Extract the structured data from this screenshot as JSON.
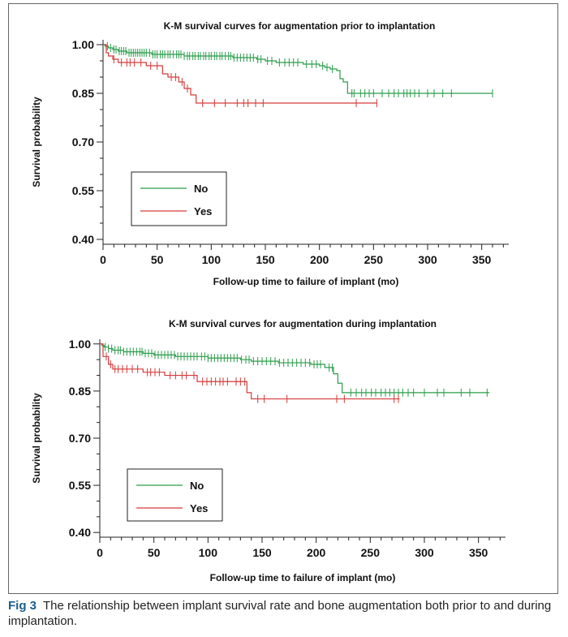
{
  "caption": {
    "label": "Fig 3",
    "text": "The relationship between implant survival rate and bone augmentation both prior to and during implantation."
  },
  "chart_data": [
    {
      "type": "line",
      "title": "K-M survival curves for augmentation prior to implantation",
      "xlabel": "Follow-up time to failure of implant (mo)",
      "ylabel": "Survival probability",
      "xlim": [
        0,
        375
      ],
      "ylim": [
        0.385,
        1.015
      ],
      "x_ticks": [
        0,
        50,
        100,
        150,
        200,
        250,
        300,
        350
      ],
      "y_ticks": [
        1.0,
        0.85,
        0.7,
        0.55,
        0.4
      ],
      "y_tick_labels": [
        "1.00",
        "0.85",
        "0.70",
        "0.55",
        "0.40"
      ],
      "legend": {
        "position": "lower-left",
        "entries": [
          "No",
          "Yes"
        ]
      },
      "series": [
        {
          "name": "No",
          "color": "#2a9d4a",
          "steps": [
            [
              0,
              1.0
            ],
            [
              2,
              0.995
            ],
            [
              5,
              0.99
            ],
            [
              9,
              0.985
            ],
            [
              14,
              0.98
            ],
            [
              22,
              0.975
            ],
            [
              45,
              0.97
            ],
            [
              75,
              0.965
            ],
            [
              120,
              0.96
            ],
            [
              142,
              0.955
            ],
            [
              150,
              0.95
            ],
            [
              160,
              0.945
            ],
            [
              185,
              0.94
            ],
            [
              200,
              0.935
            ],
            [
              205,
              0.93
            ],
            [
              210,
              0.925
            ],
            [
              216,
              0.92
            ],
            [
              219,
              0.895
            ],
            [
              222,
              0.885
            ],
            [
              226,
              0.85
            ],
            [
              360,
              0.85
            ]
          ],
          "censored": [
            4,
            7,
            10,
            12,
            15,
            17,
            19,
            21,
            24,
            26,
            28,
            30,
            32,
            34,
            36,
            38,
            40,
            43,
            46,
            48,
            50,
            53,
            55,
            57,
            60,
            62,
            65,
            68,
            70,
            72,
            75,
            78,
            80,
            83,
            85,
            88,
            90,
            93,
            95,
            98,
            100,
            103,
            105,
            108,
            110,
            113,
            116,
            118,
            121,
            124,
            127,
            130,
            133,
            136,
            139,
            143,
            146,
            152,
            156,
            163,
            168,
            172,
            176,
            180,
            188,
            193,
            197,
            203,
            207,
            212,
            230,
            232,
            238,
            242,
            246,
            250,
            258,
            264,
            269,
            273,
            278,
            281,
            284,
            288,
            292,
            300,
            306,
            314,
            322,
            360
          ]
        },
        {
          "name": "Yes",
          "color": "#d63a3a",
          "steps": [
            [
              0,
              1.0
            ],
            [
              3,
              0.975
            ],
            [
              5,
              0.965
            ],
            [
              9,
              0.955
            ],
            [
              14,
              0.945
            ],
            [
              40,
              0.935
            ],
            [
              55,
              0.91
            ],
            [
              60,
              0.9
            ],
            [
              70,
              0.885
            ],
            [
              75,
              0.865
            ],
            [
              81,
              0.845
            ],
            [
              86,
              0.82
            ],
            [
              253,
              0.82
            ]
          ],
          "censored": [
            10,
            17,
            22,
            25,
            29,
            35,
            44,
            50,
            63,
            67,
            73,
            78,
            92,
            103,
            113,
            124,
            130,
            134,
            141,
            148,
            234,
            253
          ]
        }
      ]
    },
    {
      "type": "line",
      "title": "K-M survival curves for augmentation during implantation",
      "xlabel": "Follow-up time to failure of implant (mo)",
      "ylabel": "Survival probability",
      "xlim": [
        0,
        375
      ],
      "ylim": [
        0.385,
        1.015
      ],
      "x_ticks": [
        0,
        50,
        100,
        150,
        200,
        250,
        300,
        350
      ],
      "y_ticks": [
        1.0,
        0.85,
        0.7,
        0.55,
        0.4
      ],
      "y_tick_labels": [
        "1.00",
        "0.85",
        "0.70",
        "0.55",
        "0.40"
      ],
      "legend": {
        "position": "lower-left",
        "entries": [
          "No",
          "Yes"
        ]
      },
      "series": [
        {
          "name": "No",
          "color": "#2a9d4a",
          "steps": [
            [
              0,
              1.0
            ],
            [
              2,
              0.995
            ],
            [
              4,
              0.99
            ],
            [
              8,
              0.985
            ],
            [
              12,
              0.98
            ],
            [
              22,
              0.975
            ],
            [
              40,
              0.97
            ],
            [
              50,
              0.965
            ],
            [
              70,
              0.96
            ],
            [
              100,
              0.955
            ],
            [
              130,
              0.95
            ],
            [
              140,
              0.945
            ],
            [
              165,
              0.94
            ],
            [
              195,
              0.935
            ],
            [
              208,
              0.925
            ],
            [
              216,
              0.905
            ],
            [
              220,
              0.875
            ],
            [
              224,
              0.845
            ],
            [
              360,
              0.845
            ]
          ],
          "censored": [
            5,
            8,
            11,
            14,
            17,
            19,
            22,
            25,
            28,
            31,
            34,
            37,
            39,
            42,
            45,
            48,
            51,
            54,
            57,
            60,
            63,
            66,
            69,
            72,
            75,
            78,
            81,
            84,
            87,
            90,
            94,
            97,
            100,
            103,
            106,
            109,
            112,
            115,
            118,
            121,
            124,
            127,
            131,
            135,
            138,
            142,
            146,
            150,
            154,
            158,
            162,
            166,
            170,
            174,
            178,
            182,
            186,
            190,
            194,
            198,
            201,
            204,
            212,
            215,
            232,
            237,
            242,
            246,
            251,
            255,
            260,
            264,
            268,
            272,
            276,
            280,
            285,
            290,
            300,
            312,
            318,
            334,
            342,
            358
          ]
        },
        {
          "name": "Yes",
          "color": "#d63a3a",
          "steps": [
            [
              0,
              1.0
            ],
            [
              3,
              0.96
            ],
            [
              8,
              0.935
            ],
            [
              12,
              0.92
            ],
            [
              40,
              0.91
            ],
            [
              60,
              0.9
            ],
            [
              90,
              0.88
            ],
            [
              136,
              0.845
            ],
            [
              140,
              0.825
            ],
            [
              277,
              0.825
            ]
          ],
          "censored": [
            6,
            10,
            14,
            17,
            21,
            25,
            30,
            35,
            44,
            47,
            51,
            55,
            65,
            70,
            76,
            80,
            87,
            95,
            99,
            103,
            107,
            111,
            114,
            118,
            126,
            130,
            134,
            146,
            152,
            173,
            219,
            226,
            272,
            276
          ]
        }
      ]
    }
  ]
}
